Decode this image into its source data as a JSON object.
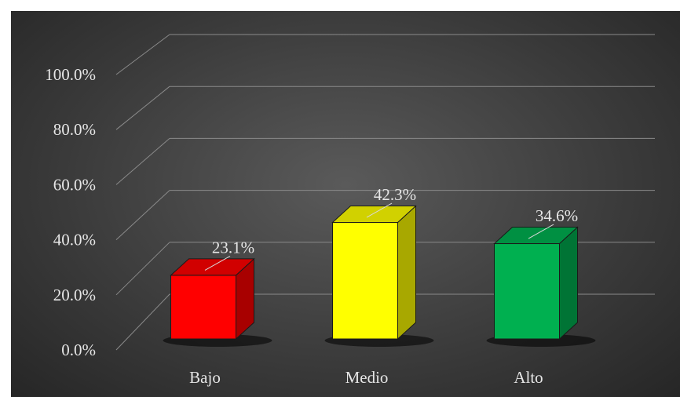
{
  "chart_data": {
    "type": "bar",
    "categories": [
      "Bajo",
      "Medio",
      "Alto"
    ],
    "values": [
      23.1,
      42.3,
      34.6
    ],
    "data_labels": [
      "23.1%",
      "42.3%",
      "34.6%"
    ],
    "colors": [
      "#ff0000",
      "#ffff00",
      "#00b050"
    ],
    "yticks": [
      "0.0%",
      "20.0%",
      "40.0%",
      "60.0%",
      "80.0%",
      "100.0%"
    ],
    "ylim": [
      0,
      100
    ],
    "grid": true,
    "three_d": true,
    "title": "",
    "xlabel": "",
    "ylabel": ""
  }
}
